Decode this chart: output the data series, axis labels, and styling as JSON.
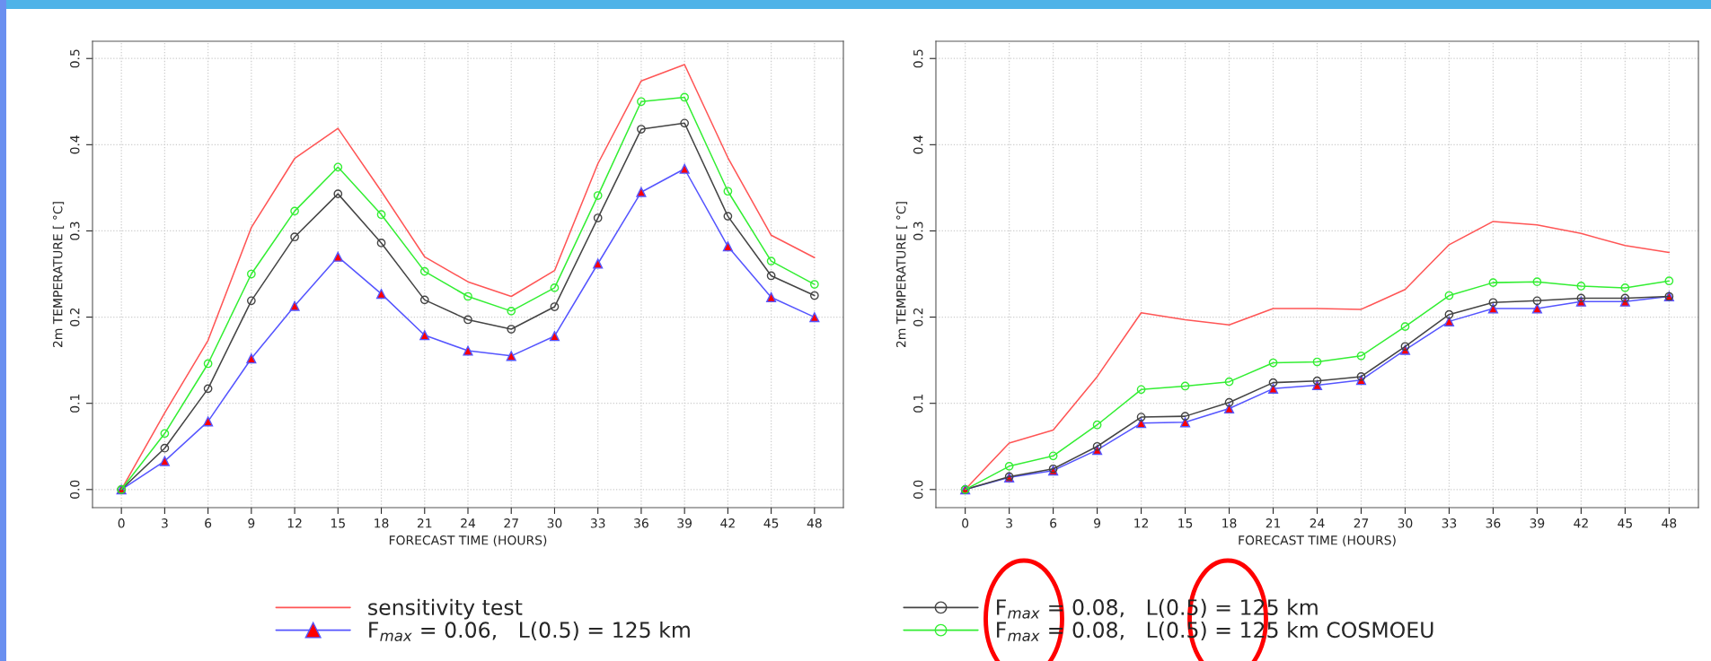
{
  "chart_data": [
    {
      "type": "line",
      "xlabel": "FORECAST TIME (HOURS)",
      "ylabel": "2m TEMPERATURE [ °C]",
      "x": [
        0,
        3,
        6,
        9,
        12,
        15,
        18,
        21,
        24,
        27,
        30,
        33,
        36,
        39,
        42,
        45,
        48
      ],
      "xlim": [
        -2,
        50
      ],
      "xticks": [
        0,
        3,
        6,
        9,
        12,
        15,
        18,
        21,
        24,
        27,
        30,
        33,
        36,
        39,
        42,
        45,
        48
      ],
      "ylim": [
        -0.021,
        0.52
      ],
      "yticks": [
        {
          "value": 0,
          "label": "0.0"
        },
        {
          "value": 0.1,
          "label": "0.1"
        },
        {
          "value": 0.2,
          "label": "0.2"
        },
        {
          "value": 0.3,
          "label": "0.3"
        },
        {
          "value": 0.4,
          "label": "0.4"
        },
        {
          "value": 0.5,
          "label": "0.5"
        }
      ],
      "grid": true,
      "legend": "bottom",
      "series": [
        {
          "name": "sensitivity test",
          "color": "#ff5555",
          "marker": "none",
          "values": [
            0,
            0.089,
            0.173,
            0.304,
            0.384,
            0.419,
            0.346,
            0.27,
            0.241,
            0.224,
            0.254,
            0.378,
            0.474,
            0.493,
            0.385,
            0.295,
            0.269
          ]
        },
        {
          "name": "F$_{max}$ = 0.06,   L(0.5) = 125 km",
          "color": "#5555ff",
          "marker": "triangle",
          "values": [
            0,
            0.033,
            0.079,
            0.152,
            0.213,
            0.27,
            0.227,
            0.179,
            0.161,
            0.155,
            0.178,
            0.262,
            0.345,
            0.372,
            0.282,
            0.223,
            0.2
          ]
        },
        {
          "name": "F$_{max}$ = 0.08,   L(0.5) = 125 km",
          "color": "#444444",
          "marker": "circle",
          "values": [
            0,
            0.048,
            0.117,
            0.219,
            0.293,
            0.343,
            0.286,
            0.22,
            0.197,
            0.186,
            0.212,
            0.315,
            0.418,
            0.425,
            0.317,
            0.248,
            0.225
          ]
        },
        {
          "name": "F$_{max}$ = 0.08,   L(0.5) = 125 km COSMOEU",
          "color": "#33ee33",
          "marker": "circle",
          "values": [
            0,
            0.065,
            0.146,
            0.25,
            0.323,
            0.374,
            0.319,
            0.253,
            0.224,
            0.207,
            0.234,
            0.341,
            0.45,
            0.455,
            0.346,
            0.265,
            0.238
          ]
        }
      ]
    },
    {
      "type": "line",
      "xlabel": "FORECAST TIME (HOURS)",
      "ylabel": "2m TEMPERATURE [ °C]",
      "x": [
        0,
        3,
        6,
        9,
        12,
        15,
        18,
        21,
        24,
        27,
        30,
        33,
        36,
        39,
        42,
        45,
        48
      ],
      "xlim": [
        -2,
        50
      ],
      "xticks": [
        0,
        3,
        6,
        9,
        12,
        15,
        18,
        21,
        24,
        27,
        30,
        33,
        36,
        39,
        42,
        45,
        48
      ],
      "ylim": [
        -0.021,
        0.52
      ],
      "yticks": [
        {
          "value": 0,
          "label": "0.0"
        },
        {
          "value": 0.1,
          "label": "0.1"
        },
        {
          "value": 0.2,
          "label": "0.2"
        },
        {
          "value": 0.3,
          "label": "0.3"
        },
        {
          "value": 0.4,
          "label": "0.4"
        },
        {
          "value": 0.5,
          "label": "0.5"
        }
      ],
      "grid": true,
      "series": [
        {
          "color": "#ff5555",
          "marker": "none",
          "values": [
            0,
            0.054,
            0.069,
            0.131,
            0.205,
            0.197,
            0.191,
            0.21,
            0.21,
            0.209,
            0.232,
            0.284,
            0.311,
            0.307,
            0.297,
            0.283,
            0.275
          ]
        },
        {
          "color": "#5555ff",
          "marker": "triangle",
          "values": [
            0,
            0.014,
            0.022,
            0.046,
            0.077,
            0.078,
            0.094,
            0.117,
            0.121,
            0.127,
            0.162,
            0.195,
            0.21,
            0.21,
            0.218,
            0.218,
            0.224
          ]
        },
        {
          "color": "#444444",
          "marker": "circle",
          "values": [
            0,
            0.015,
            0.024,
            0.05,
            0.084,
            0.085,
            0.101,
            0.124,
            0.126,
            0.131,
            0.166,
            0.203,
            0.217,
            0.219,
            0.222,
            0.222,
            0.224
          ]
        },
        {
          "color": "#33ee33",
          "marker": "circle",
          "values": [
            0,
            0.027,
            0.039,
            0.075,
            0.116,
            0.12,
            0.125,
            0.147,
            0.148,
            0.155,
            0.189,
            0.225,
            0.24,
            0.241,
            0.236,
            0.234,
            0.242
          ]
        }
      ]
    }
  ]
}
